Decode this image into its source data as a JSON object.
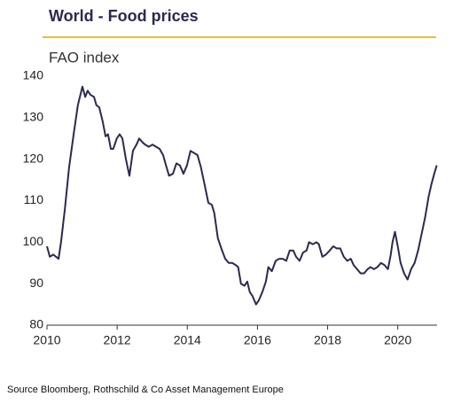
{
  "chart_data": {
    "type": "line",
    "title": "World - Food prices",
    "subtitle": "FAO index",
    "source": "Source Bloomberg, Rothschild  & Co Asset Management  Europe",
    "xlim": [
      2010,
      2021.12
    ],
    "xticks": [
      2010,
      2012,
      2014,
      2016,
      2018,
      2020
    ],
    "ylim": [
      80,
      140
    ],
    "yticks": [
      80,
      90,
      100,
      110,
      120,
      130,
      140
    ],
    "grid": false,
    "accent_color": "#e8c22a",
    "series": [
      {
        "color": "#2b2a4e",
        "x": [
          2010.0,
          2010.08,
          2010.18,
          2010.33,
          2010.4,
          2010.51,
          2010.63,
          2010.76,
          2010.88,
          2011.01,
          2011.09,
          2011.16,
          2011.24,
          2011.34,
          2011.41,
          2011.49,
          2011.59,
          2011.67,
          2011.74,
          2011.82,
          2011.89,
          2011.99,
          2012.07,
          2012.15,
          2012.25,
          2012.35,
          2012.45,
          2012.55,
          2012.63,
          2012.73,
          2012.8,
          2012.9,
          2013.01,
          2013.11,
          2013.21,
          2013.31,
          2013.41,
          2013.48,
          2013.59,
          2013.69,
          2013.79,
          2013.89,
          2013.99,
          2014.09,
          2014.19,
          2014.29,
          2014.39,
          2014.49,
          2014.6,
          2014.7,
          2014.77,
          2014.87,
          2014.97,
          2015.08,
          2015.18,
          2015.28,
          2015.38,
          2015.45,
          2015.53,
          2015.63,
          2015.71,
          2015.78,
          2015.86,
          2015.96,
          2016.04,
          2016.14,
          2016.24,
          2016.31,
          2016.41,
          2016.52,
          2016.62,
          2016.72,
          2016.82,
          2016.92,
          2017.02,
          2017.1,
          2017.2,
          2017.3,
          2017.4,
          2017.47,
          2017.58,
          2017.68,
          2017.75,
          2017.85,
          2017.95,
          2018.06,
          2018.16,
          2018.26,
          2018.36,
          2018.46,
          2018.56,
          2018.66,
          2018.74,
          2018.84,
          2018.94,
          2019.04,
          2019.14,
          2019.22,
          2019.32,
          2019.42,
          2019.52,
          2019.62,
          2019.72,
          2019.8,
          2019.85,
          2019.92,
          2020.0,
          2020.08,
          2020.18,
          2020.28,
          2020.38,
          2020.48,
          2020.58,
          2020.68,
          2020.78,
          2020.88,
          2020.96,
          2021.04,
          2021.11
        ],
        "values": [
          99,
          96.5,
          97,
          96,
          100,
          108,
          118,
          126,
          133,
          137.5,
          135,
          136.5,
          135.5,
          135,
          133,
          132.5,
          129,
          125.5,
          126,
          122.5,
          122.5,
          125,
          126,
          125,
          120,
          116,
          122,
          123.5,
          125,
          124,
          123.5,
          123,
          123.5,
          123,
          122.5,
          121,
          118,
          116,
          116.5,
          119,
          118.5,
          116.5,
          118.5,
          122,
          121.5,
          121,
          118,
          114,
          109.5,
          109,
          107,
          101,
          98.5,
          96,
          95,
          95,
          94.5,
          94,
          90,
          89.5,
          90.5,
          88,
          87,
          85,
          86,
          88,
          90.5,
          94,
          93,
          95.5,
          96,
          96,
          95.5,
          98,
          98,
          96.5,
          95.5,
          97.5,
          98,
          100,
          99.5,
          100,
          99.5,
          96.5,
          97,
          98,
          99,
          98.5,
          98.5,
          96.5,
          95.5,
          96,
          94.5,
          93.5,
          92.5,
          92.5,
          93.5,
          94,
          93.5,
          94,
          95,
          94.5,
          93.5,
          97,
          100,
          102.5,
          99,
          95,
          92.5,
          91,
          93.5,
          95,
          98,
          102,
          106,
          111,
          114,
          116.5,
          118.5
        ]
      }
    ]
  }
}
